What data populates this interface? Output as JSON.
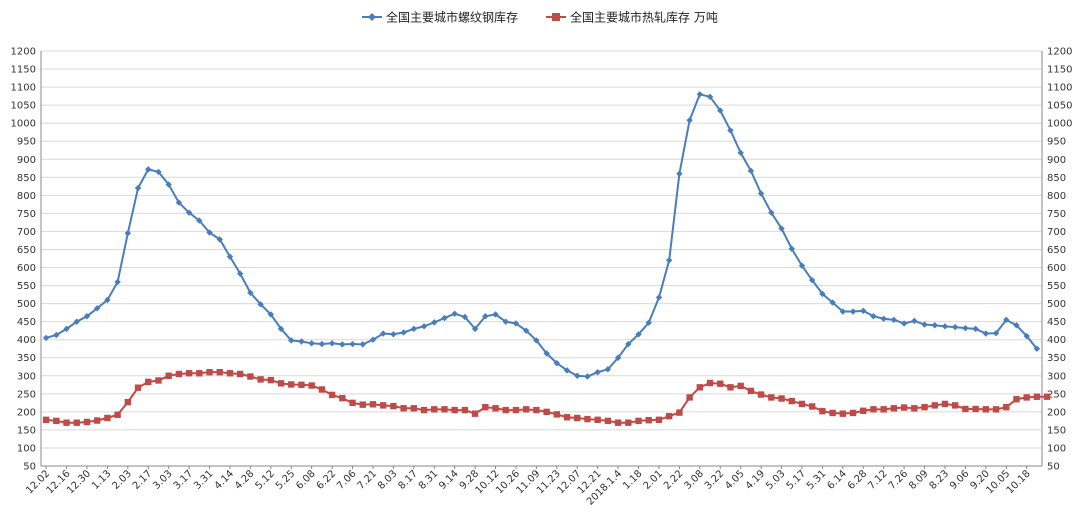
{
  "chart_data": {
    "type": "line",
    "title": "",
    "xlabel": "",
    "ylabel": "",
    "ylim": [
      50,
      1200
    ],
    "y_ticks": [
      "50",
      "100",
      "150",
      "200",
      "250",
      "300",
      "350",
      "400",
      "450",
      "500",
      "550",
      "600",
      "650",
      "700",
      "750",
      "800",
      "850",
      "900",
      "950",
      "1000",
      "1050",
      "1100",
      "1150",
      "1200"
    ],
    "grid": true,
    "legend_position": "top-center",
    "x_tick_labels": [
      "12.02",
      "12.16",
      "12.30",
      "1.13",
      "2.03",
      "2.17",
      "3.03",
      "3.17",
      "3.31",
      "4.14",
      "4.28",
      "5.12",
      "5.25",
      "6.08",
      "6.22",
      "7.06",
      "7.21",
      "8.03",
      "8.17",
      "8.31",
      "9.14",
      "9.28",
      "10.12",
      "10.26",
      "11.09",
      "11.23",
      "12.07",
      "12.21",
      "2018.1.4",
      "1.18",
      "2.01",
      "2.22",
      "3.08",
      "3.22",
      "4.05",
      "4.19",
      "5.03",
      "5.17",
      "5.31",
      "6.14",
      "6.28",
      "7.12",
      "7.26",
      "8.09",
      "8.23",
      "9.06",
      "9.20",
      "10.05",
      "10.18"
    ],
    "series": [
      {
        "name": "全国主要城市螺纹钢库存",
        "color": "#4a7ebb",
        "marker": "diamond",
        "values": [
          405,
          413,
          430,
          450,
          465,
          487,
          510,
          560,
          695,
          820,
          872,
          865,
          830,
          780,
          752,
          730,
          697,
          678,
          630,
          583,
          530,
          498,
          470,
          430,
          398,
          395,
          390,
          388,
          390,
          387,
          388,
          387,
          400,
          417,
          415,
          420,
          430,
          437,
          448,
          460,
          472,
          463,
          430,
          465,
          470,
          450,
          445,
          425,
          398,
          362,
          335,
          315,
          300,
          298,
          310,
          318,
          350,
          388,
          415,
          447,
          517,
          620,
          860,
          1008,
          1080,
          1073,
          1035,
          980,
          918,
          868,
          805,
          752,
          708,
          652,
          605,
          565,
          527,
          503,
          478,
          478,
          480,
          465,
          458,
          455,
          445,
          452,
          442,
          440,
          437,
          435,
          432,
          430,
          417,
          418,
          455,
          440,
          410,
          375
        ]
      },
      {
        "name": "全国主要城市热轧库存 万吨",
        "color": "#be4b48",
        "marker": "square",
        "values": [
          178,
          175,
          170,
          170,
          172,
          176,
          183,
          192,
          227,
          267,
          283,
          287,
          300,
          305,
          307,
          307,
          310,
          310,
          307,
          305,
          298,
          290,
          288,
          279,
          276,
          275,
          273,
          262,
          247,
          238,
          225,
          220,
          221,
          218,
          216,
          210,
          210,
          205,
          207,
          207,
          205,
          205,
          195,
          213,
          210,
          205,
          205,
          207,
          205,
          200,
          193,
          185,
          183,
          180,
          178,
          175,
          170,
          170,
          175,
          177,
          178,
          188,
          198,
          240,
          268,
          280,
          278,
          268,
          272,
          258,
          248,
          240,
          237,
          230,
          222,
          215,
          202,
          197,
          195,
          197,
          203,
          207,
          207,
          210,
          212,
          210,
          213,
          218,
          222,
          218,
          208,
          208,
          207,
          207,
          213,
          235,
          240,
          242,
          242
        ]
      }
    ]
  }
}
